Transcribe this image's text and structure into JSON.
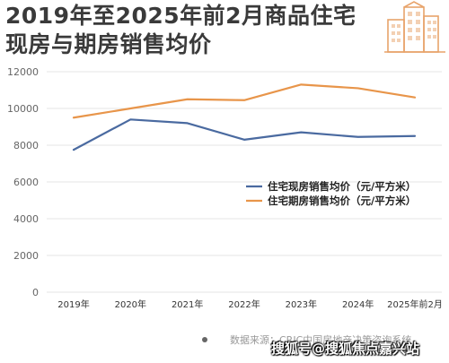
{
  "title": {
    "line1": "2019年至2025年前2月商品住宅",
    "line2": "现房与期房销售均价"
  },
  "icons": {
    "building": "building-icon"
  },
  "colors": {
    "existing": "#4a6aa0",
    "presale": "#e8954a",
    "grid": "#e6e6e6",
    "axis": "#666666"
  },
  "chart_data": {
    "type": "line",
    "categories": [
      "2019年",
      "2020年",
      "2021年",
      "2022年",
      "2023年",
      "2024年",
      "2025年前2月"
    ],
    "series": [
      {
        "name": "住宅现房销售均价（元/平方米）",
        "values": [
          7750,
          9400,
          9200,
          8300,
          8700,
          8450,
          8500
        ]
      },
      {
        "name": "住宅期房销售均价（元/平方米）",
        "values": [
          9500,
          10000,
          10500,
          10450,
          11300,
          11100,
          10600
        ]
      }
    ],
    "y_ticks": [
      0,
      2000,
      4000,
      6000,
      8000,
      10000,
      12000
    ],
    "ylim": [
      0,
      12000
    ],
    "grid": true,
    "legend_position": "center-right"
  },
  "footer": {
    "source": "数据来源：CRIC中国房地产决策咨询系统",
    "watermark": "搜狐号@搜狐焦点嘉兴站"
  }
}
